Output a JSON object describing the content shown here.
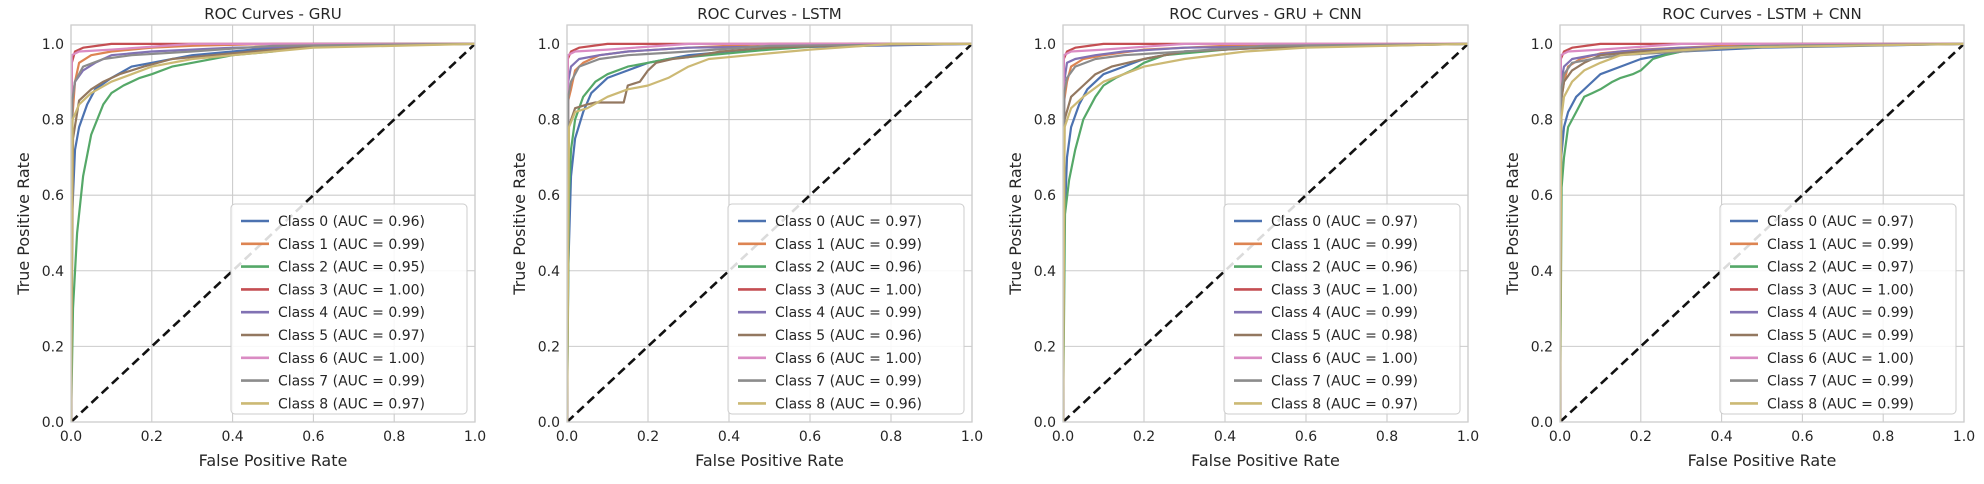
{
  "colors": {
    "class_palette": [
      "#4c72b0",
      "#dd8452",
      "#55a868",
      "#c44e52",
      "#8172b3",
      "#937860",
      "#da8bc3",
      "#8c8c8c",
      "#ccb974"
    ],
    "grid": "#cccccc",
    "diagonal": "#111111"
  },
  "chart_data": [
    {
      "type": "line",
      "title": "ROC Curves - GRU",
      "xlabel": "False Positive Rate",
      "ylabel": "True Positive Rate",
      "xlim": [
        0,
        1.0
      ],
      "ylim": [
        0,
        1.05
      ],
      "xticks": [
        "0.0",
        "0.2",
        "0.4",
        "0.6",
        "0.8",
        "1.0"
      ],
      "yticks": [
        "0.0",
        "0.2",
        "0.4",
        "0.6",
        "0.8",
        "1.0"
      ],
      "grid": true,
      "legend_position": "lower-right",
      "diagonal_reference": true,
      "series": [
        {
          "name": "Class 0 (AUC = 0.96)",
          "x": [
            0,
            0.003,
            0.01,
            0.02,
            0.04,
            0.06,
            0.1,
            0.15,
            0.2,
            0.3,
            0.45,
            0.6,
            1.0
          ],
          "y": [
            0,
            0.55,
            0.72,
            0.78,
            0.84,
            0.88,
            0.91,
            0.94,
            0.95,
            0.97,
            0.985,
            0.995,
            1.0
          ]
        },
        {
          "name": "Class 1 (AUC = 0.99)",
          "x": [
            0,
            0.003,
            0.01,
            0.02,
            0.05,
            0.1,
            0.2,
            0.3,
            0.5,
            1.0
          ],
          "y": [
            0,
            0.8,
            0.9,
            0.95,
            0.97,
            0.98,
            0.99,
            0.995,
            1.0,
            1.0
          ]
        },
        {
          "name": "Class 2 (AUC = 0.95)",
          "x": [
            0,
            0.005,
            0.015,
            0.03,
            0.05,
            0.08,
            0.1,
            0.13,
            0.17,
            0.2,
            0.25,
            0.3,
            0.4,
            0.5,
            0.6,
            1.0
          ],
          "y": [
            0,
            0.3,
            0.5,
            0.65,
            0.76,
            0.84,
            0.87,
            0.89,
            0.91,
            0.92,
            0.94,
            0.95,
            0.97,
            0.98,
            1.0,
            1.0
          ]
        },
        {
          "name": "Class 3 (AUC = 1.00)",
          "x": [
            0,
            0.002,
            0.01,
            0.03,
            0.1,
            1.0
          ],
          "y": [
            0,
            0.95,
            0.98,
            0.99,
            1.0,
            1.0
          ]
        },
        {
          "name": "Class 4 (AUC = 0.99)",
          "x": [
            0,
            0.003,
            0.01,
            0.03,
            0.06,
            0.1,
            0.2,
            0.4,
            1.0
          ],
          "y": [
            0,
            0.85,
            0.9,
            0.93,
            0.95,
            0.97,
            0.98,
            0.99,
            1.0
          ]
        },
        {
          "name": "Class 5 (AUC = 0.97)",
          "x": [
            0,
            0.005,
            0.02,
            0.05,
            0.08,
            0.12,
            0.18,
            0.25,
            0.35,
            0.5,
            0.7,
            1.0
          ],
          "y": [
            0,
            0.75,
            0.85,
            0.88,
            0.9,
            0.92,
            0.94,
            0.96,
            0.97,
            0.985,
            1.0,
            1.0
          ]
        },
        {
          "name": "Class 6 (AUC = 1.00)",
          "x": [
            0,
            0.002,
            0.02,
            0.1,
            0.3,
            1.0
          ],
          "y": [
            0,
            0.97,
            0.98,
            0.985,
            1.0,
            1.0
          ]
        },
        {
          "name": "Class 7 (AUC = 0.99)",
          "x": [
            0,
            0.003,
            0.01,
            0.03,
            0.08,
            0.15,
            0.3,
            0.5,
            1.0
          ],
          "y": [
            0,
            0.85,
            0.9,
            0.94,
            0.96,
            0.97,
            0.98,
            0.995,
            1.0
          ]
        },
        {
          "name": "Class 8 (AUC = 0.97)",
          "x": [
            0,
            0.004,
            0.02,
            0.05,
            0.1,
            0.15,
            0.2,
            0.3,
            0.4,
            0.6,
            1.0
          ],
          "y": [
            0,
            0.8,
            0.84,
            0.87,
            0.9,
            0.92,
            0.94,
            0.96,
            0.97,
            0.99,
            1.0
          ]
        }
      ]
    },
    {
      "type": "line",
      "title": "ROC Curves - LSTM",
      "xlabel": "False Positive Rate",
      "ylabel": "True Positive Rate",
      "xlim": [
        0,
        1.0
      ],
      "ylim": [
        0,
        1.05
      ],
      "xticks": [
        "0.0",
        "0.2",
        "0.4",
        "0.6",
        "0.8",
        "1.0"
      ],
      "yticks": [
        "0.0",
        "0.2",
        "0.4",
        "0.6",
        "0.8",
        "1.0"
      ],
      "grid": true,
      "legend_position": "lower-right",
      "diagonal_reference": true,
      "series": [
        {
          "name": "Class 0 (AUC = 0.97)",
          "x": [
            0,
            0.003,
            0.01,
            0.02,
            0.04,
            0.06,
            0.1,
            0.15,
            0.2,
            0.3,
            0.5,
            1.0
          ],
          "y": [
            0,
            0.4,
            0.65,
            0.75,
            0.82,
            0.87,
            0.91,
            0.93,
            0.95,
            0.97,
            0.99,
            1.0
          ]
        },
        {
          "name": "Class 1 (AUC = 0.99)",
          "x": [
            0,
            0.003,
            0.01,
            0.02,
            0.04,
            0.08,
            0.15,
            0.3,
            0.5,
            1.0
          ],
          "y": [
            0,
            0.85,
            0.88,
            0.93,
            0.95,
            0.97,
            0.98,
            0.99,
            1.0,
            1.0
          ]
        },
        {
          "name": "Class 2 (AUC = 0.96)",
          "x": [
            0,
            0.005,
            0.01,
            0.02,
            0.04,
            0.07,
            0.1,
            0.15,
            0.2,
            0.25,
            0.35,
            0.5,
            0.7,
            1.0
          ],
          "y": [
            0,
            0.6,
            0.72,
            0.8,
            0.86,
            0.9,
            0.92,
            0.94,
            0.95,
            0.96,
            0.97,
            0.985,
            1.0,
            1.0
          ]
        },
        {
          "name": "Class 3 (AUC = 1.00)",
          "x": [
            0,
            0.002,
            0.01,
            0.03,
            0.1,
            1.0
          ],
          "y": [
            0,
            0.96,
            0.98,
            0.99,
            1.0,
            1.0
          ]
        },
        {
          "name": "Class 4 (AUC = 0.99)",
          "x": [
            0,
            0.003,
            0.01,
            0.03,
            0.08,
            0.15,
            0.3,
            1.0
          ],
          "y": [
            0,
            0.9,
            0.94,
            0.96,
            0.97,
            0.98,
            0.99,
            1.0
          ]
        },
        {
          "name": "Class 5 (AUC = 0.96)",
          "x": [
            0,
            0.004,
            0.02,
            0.05,
            0.07,
            0.1,
            0.14,
            0.15,
            0.18,
            0.2,
            0.22,
            0.26,
            0.3,
            0.38,
            0.5,
            0.8,
            1.0
          ],
          "y": [
            0,
            0.78,
            0.83,
            0.84,
            0.845,
            0.845,
            0.845,
            0.89,
            0.9,
            0.93,
            0.95,
            0.96,
            0.965,
            0.98,
            0.99,
            1.0,
            1.0
          ]
        },
        {
          "name": "Class 6 (AUC = 1.00)",
          "x": [
            0,
            0.002,
            0.02,
            0.1,
            0.3,
            1.0
          ],
          "y": [
            0,
            0.97,
            0.98,
            0.985,
            1.0,
            1.0
          ]
        },
        {
          "name": "Class 7 (AUC = 0.99)",
          "x": [
            0,
            0.003,
            0.01,
            0.03,
            0.08,
            0.15,
            0.3,
            0.5,
            1.0
          ],
          "y": [
            0,
            0.86,
            0.9,
            0.94,
            0.96,
            0.97,
            0.98,
            0.995,
            1.0
          ]
        },
        {
          "name": "Class 8 (AUC = 0.96)",
          "x": [
            0,
            0.005,
            0.02,
            0.05,
            0.1,
            0.15,
            0.2,
            0.25,
            0.3,
            0.35,
            0.45,
            0.6,
            0.8,
            1.0
          ],
          "y": [
            0,
            0.78,
            0.82,
            0.83,
            0.86,
            0.88,
            0.89,
            0.91,
            0.94,
            0.96,
            0.97,
            0.985,
            1.0,
            1.0
          ]
        }
      ]
    },
    {
      "type": "line",
      "title": "ROC Curves - GRU + CNN",
      "xlabel": "False Positive Rate",
      "ylabel": "True Positive Rate",
      "xlim": [
        0,
        1.0
      ],
      "ylim": [
        0,
        1.05
      ],
      "xticks": [
        "0.0",
        "0.2",
        "0.4",
        "0.6",
        "0.8",
        "1.0"
      ],
      "yticks": [
        "0.0",
        "0.2",
        "0.4",
        "0.6",
        "0.8",
        "1.0"
      ],
      "grid": true,
      "legend_position": "lower-right",
      "diagonal_reference": true,
      "series": [
        {
          "name": "Class 0 (AUC = 0.97)",
          "x": [
            0,
            0.003,
            0.01,
            0.02,
            0.04,
            0.06,
            0.1,
            0.15,
            0.2,
            0.3,
            0.5,
            1.0
          ],
          "y": [
            0,
            0.5,
            0.7,
            0.78,
            0.84,
            0.88,
            0.92,
            0.94,
            0.96,
            0.98,
            0.99,
            1.0
          ]
        },
        {
          "name": "Class 1 (AUC = 0.99)",
          "x": [
            0,
            0.003,
            0.01,
            0.02,
            0.05,
            0.1,
            0.2,
            0.4,
            1.0
          ],
          "y": [
            0,
            0.85,
            0.9,
            0.94,
            0.96,
            0.97,
            0.985,
            0.995,
            1.0
          ]
        },
        {
          "name": "Class 2 (AUC = 0.96)",
          "x": [
            0,
            0.005,
            0.015,
            0.03,
            0.05,
            0.08,
            0.1,
            0.13,
            0.17,
            0.2,
            0.25,
            0.35,
            0.5,
            1.0
          ],
          "y": [
            0,
            0.55,
            0.64,
            0.72,
            0.8,
            0.86,
            0.89,
            0.91,
            0.93,
            0.95,
            0.97,
            0.98,
            0.995,
            1.0
          ]
        },
        {
          "name": "Class 3 (AUC = 1.00)",
          "x": [
            0,
            0.002,
            0.01,
            0.03,
            0.1,
            1.0
          ],
          "y": [
            0,
            0.96,
            0.98,
            0.99,
            1.0,
            1.0
          ]
        },
        {
          "name": "Class 4 (AUC = 0.99)",
          "x": [
            0,
            0.003,
            0.01,
            0.03,
            0.08,
            0.15,
            0.3,
            1.0
          ],
          "y": [
            0,
            0.9,
            0.95,
            0.96,
            0.97,
            0.98,
            0.99,
            1.0
          ]
        },
        {
          "name": "Class 5 (AUC = 0.98)",
          "x": [
            0,
            0.004,
            0.02,
            0.05,
            0.08,
            0.12,
            0.2,
            0.3,
            0.5,
            1.0
          ],
          "y": [
            0,
            0.8,
            0.86,
            0.89,
            0.92,
            0.94,
            0.96,
            0.98,
            0.99,
            1.0
          ]
        },
        {
          "name": "Class 6 (AUC = 1.00)",
          "x": [
            0,
            0.002,
            0.02,
            0.1,
            0.3,
            1.0
          ],
          "y": [
            0,
            0.97,
            0.98,
            0.985,
            1.0,
            1.0
          ]
        },
        {
          "name": "Class 7 (AUC = 0.99)",
          "x": [
            0,
            0.003,
            0.01,
            0.03,
            0.08,
            0.15,
            0.3,
            0.5,
            1.0
          ],
          "y": [
            0,
            0.87,
            0.91,
            0.94,
            0.96,
            0.97,
            0.98,
            0.995,
            1.0
          ]
        },
        {
          "name": "Class 8 (AUC = 0.97)",
          "x": [
            0,
            0.004,
            0.02,
            0.05,
            0.1,
            0.15,
            0.2,
            0.3,
            0.45,
            0.6,
            1.0
          ],
          "y": [
            0,
            0.78,
            0.83,
            0.86,
            0.9,
            0.92,
            0.94,
            0.96,
            0.98,
            0.99,
            1.0
          ]
        }
      ]
    },
    {
      "type": "line",
      "title": "ROC Curves - LSTM + CNN",
      "xlabel": "False Positive Rate",
      "ylabel": "True Positive Rate",
      "xlim": [
        0,
        1.0
      ],
      "ylim": [
        0,
        1.05
      ],
      "xticks": [
        "0.0",
        "0.2",
        "0.4",
        "0.6",
        "0.8",
        "1.0"
      ],
      "yticks": [
        "0.0",
        "0.2",
        "0.4",
        "0.6",
        "0.8",
        "1.0"
      ],
      "grid": true,
      "legend_position": "lower-right",
      "diagonal_reference": true,
      "series": [
        {
          "name": "Class 0 (AUC = 0.97)",
          "x": [
            0,
            0.003,
            0.01,
            0.02,
            0.04,
            0.07,
            0.1,
            0.15,
            0.2,
            0.3,
            0.5,
            1.0
          ],
          "y": [
            0,
            0.7,
            0.78,
            0.82,
            0.86,
            0.89,
            0.92,
            0.94,
            0.96,
            0.98,
            0.99,
            1.0
          ]
        },
        {
          "name": "Class 1 (AUC = 0.99)",
          "x": [
            0,
            0.003,
            0.01,
            0.02,
            0.05,
            0.1,
            0.2,
            0.4,
            1.0
          ],
          "y": [
            0,
            0.85,
            0.9,
            0.94,
            0.96,
            0.975,
            0.985,
            0.995,
            1.0
          ]
        },
        {
          "name": "Class 2 (AUC = 0.97)",
          "x": [
            0,
            0.004,
            0.01,
            0.02,
            0.04,
            0.06,
            0.08,
            0.1,
            0.13,
            0.15,
            0.18,
            0.2,
            0.23,
            0.26,
            0.3,
            0.4,
            0.55,
            1.0
          ],
          "y": [
            0,
            0.62,
            0.7,
            0.78,
            0.82,
            0.86,
            0.87,
            0.88,
            0.9,
            0.91,
            0.92,
            0.93,
            0.96,
            0.97,
            0.98,
            0.99,
            1.0,
            1.0
          ]
        },
        {
          "name": "Class 3 (AUC = 1.00)",
          "x": [
            0,
            0.002,
            0.01,
            0.03,
            0.1,
            1.0
          ],
          "y": [
            0,
            0.96,
            0.98,
            0.99,
            1.0,
            1.0
          ]
        },
        {
          "name": "Class 4 (AUC = 0.99)",
          "x": [
            0,
            0.003,
            0.01,
            0.03,
            0.08,
            0.15,
            0.3,
            1.0
          ],
          "y": [
            0,
            0.9,
            0.94,
            0.96,
            0.97,
            0.98,
            0.99,
            1.0
          ]
        },
        {
          "name": "Class 5 (AUC = 0.99)",
          "x": [
            0,
            0.003,
            0.01,
            0.03,
            0.06,
            0.1,
            0.2,
            0.4,
            1.0
          ],
          "y": [
            0,
            0.85,
            0.9,
            0.93,
            0.95,
            0.97,
            0.98,
            0.99,
            1.0
          ]
        },
        {
          "name": "Class 6 (AUC = 1.00)",
          "x": [
            0,
            0.002,
            0.02,
            0.1,
            0.3,
            1.0
          ],
          "y": [
            0,
            0.97,
            0.98,
            0.985,
            1.0,
            1.0
          ]
        },
        {
          "name": "Class 7 (AUC = 0.99)",
          "x": [
            0,
            0.003,
            0.01,
            0.03,
            0.08,
            0.15,
            0.3,
            0.5,
            1.0
          ],
          "y": [
            0,
            0.88,
            0.92,
            0.95,
            0.96,
            0.97,
            0.98,
            0.995,
            1.0
          ]
        },
        {
          "name": "Class 8 (AUC = 0.99)",
          "x": [
            0,
            0.003,
            0.01,
            0.03,
            0.06,
            0.1,
            0.15,
            0.25,
            0.4,
            1.0
          ],
          "y": [
            0,
            0.8,
            0.86,
            0.9,
            0.93,
            0.95,
            0.97,
            0.98,
            0.99,
            1.0
          ]
        }
      ]
    }
  ]
}
